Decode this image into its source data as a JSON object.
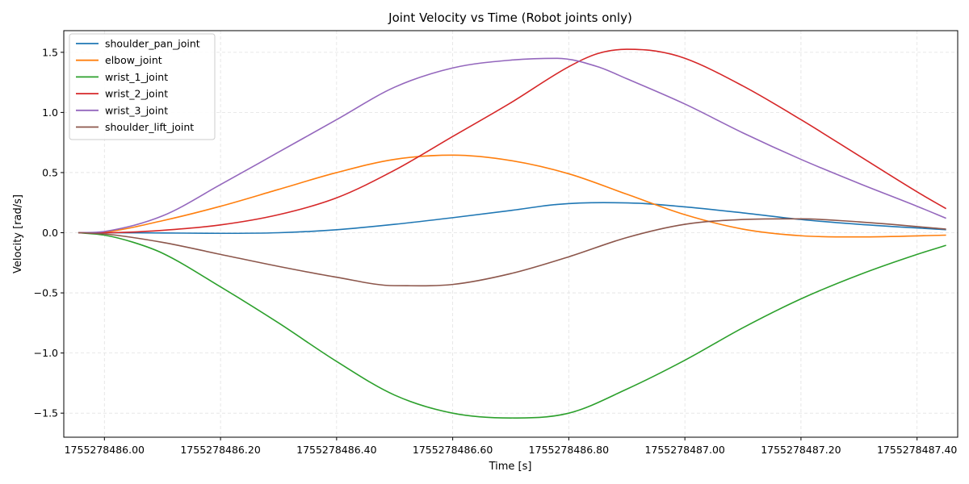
{
  "chart_data": {
    "type": "line",
    "title": "Joint Velocity vs Time (Robot joints only)",
    "xlabel": "Time [s]",
    "ylabel": "Velocity [rad/s]",
    "xlim": [
      1755278485.93,
      1755278487.47
    ],
    "ylim": [
      -1.7,
      1.68
    ],
    "x_offset": 1755278486,
    "xticks": [
      1755278486.0,
      1755278486.2,
      1755278486.4,
      1755278486.6,
      1755278486.8,
      1755278487.0,
      1755278487.2,
      1755278487.4
    ],
    "xtick_labels": [
      "1755278486.00",
      "1755278486.20",
      "1755278486.40",
      "1755278486.60",
      "1755278486.80",
      "1755278487.00",
      "1755278487.20",
      "1755278487.40"
    ],
    "yticks": [
      -1.5,
      -1.0,
      -0.5,
      0.0,
      0.5,
      1.0,
      1.5
    ],
    "ytick_labels": [
      "−1.5",
      "−1.0",
      "−0.5",
      "0.0",
      "0.5",
      "1.0",
      "1.5"
    ],
    "grid": true,
    "legend_position": "top-left",
    "series": [
      {
        "name": "shoulder_pan_joint",
        "color": "#1f77b4",
        "t": [
          -0.045,
          0.0,
          0.1,
          0.2,
          0.3,
          0.4,
          0.5,
          0.6,
          0.7,
          0.78,
          0.86,
          0.92,
          1.0,
          1.1,
          1.2,
          1.3,
          1.45
        ],
        "v": [
          0.0,
          0.0,
          -0.002,
          -0.005,
          0.0,
          0.025,
          0.07,
          0.125,
          0.185,
          0.235,
          0.25,
          0.245,
          0.215,
          0.165,
          0.11,
          0.07,
          0.025
        ]
      },
      {
        "name": "elbow_joint",
        "color": "#ff7f0e",
        "t": [
          -0.045,
          0.0,
          0.1,
          0.2,
          0.3,
          0.4,
          0.5,
          0.6,
          0.7,
          0.8,
          0.9,
          1.0,
          1.1,
          1.2,
          1.3,
          1.45
        ],
        "v": [
          0.0,
          0.005,
          0.1,
          0.22,
          0.36,
          0.5,
          0.61,
          0.645,
          0.6,
          0.49,
          0.32,
          0.15,
          0.03,
          -0.025,
          -0.035,
          -0.02
        ]
      },
      {
        "name": "wrist_1_joint",
        "color": "#2ca02c",
        "t": [
          -0.045,
          0.0,
          0.05,
          0.1,
          0.2,
          0.3,
          0.4,
          0.5,
          0.6,
          0.7,
          0.8,
          0.9,
          1.0,
          1.1,
          1.2,
          1.3,
          1.4,
          1.45
        ],
        "v": [
          0.0,
          -0.02,
          -0.08,
          -0.17,
          -0.45,
          -0.75,
          -1.07,
          -1.35,
          -1.5,
          -1.54,
          -1.5,
          -1.3,
          -1.06,
          -0.79,
          -0.55,
          -0.35,
          -0.18,
          -0.105
        ]
      },
      {
        "name": "wrist_2_joint",
        "color": "#d62728",
        "t": [
          -0.045,
          0.0,
          0.1,
          0.2,
          0.3,
          0.4,
          0.5,
          0.6,
          0.7,
          0.8,
          0.85,
          0.9,
          0.95,
          1.0,
          1.1,
          1.2,
          1.3,
          1.4,
          1.45
        ],
        "v": [
          0.0,
          0.0,
          0.02,
          0.065,
          0.15,
          0.29,
          0.52,
          0.8,
          1.08,
          1.38,
          1.49,
          1.525,
          1.51,
          1.45,
          1.22,
          0.94,
          0.64,
          0.34,
          0.2
        ]
      },
      {
        "name": "wrist_3_joint",
        "color": "#9467bd",
        "t": [
          -0.045,
          0.0,
          0.1,
          0.2,
          0.3,
          0.4,
          0.5,
          0.6,
          0.7,
          0.78,
          0.85,
          0.9,
          1.0,
          1.1,
          1.2,
          1.3,
          1.4,
          1.45
        ],
        "v": [
          0.0,
          0.01,
          0.14,
          0.4,
          0.67,
          0.94,
          1.21,
          1.37,
          1.435,
          1.45,
          1.38,
          1.28,
          1.07,
          0.83,
          0.61,
          0.41,
          0.22,
          0.12
        ]
      },
      {
        "name": "shoulder_lift_joint",
        "color": "#8c564b",
        "t": [
          -0.045,
          0.0,
          0.1,
          0.2,
          0.3,
          0.4,
          0.5,
          0.6,
          0.7,
          0.8,
          0.9,
          1.0,
          1.1,
          1.2,
          1.3,
          1.45
        ],
        "v": [
          0.0,
          -0.01,
          -0.08,
          -0.18,
          -0.28,
          -0.37,
          -0.44,
          -0.43,
          -0.34,
          -0.2,
          -0.04,
          0.07,
          0.11,
          0.115,
          0.09,
          0.03
        ]
      }
    ]
  }
}
